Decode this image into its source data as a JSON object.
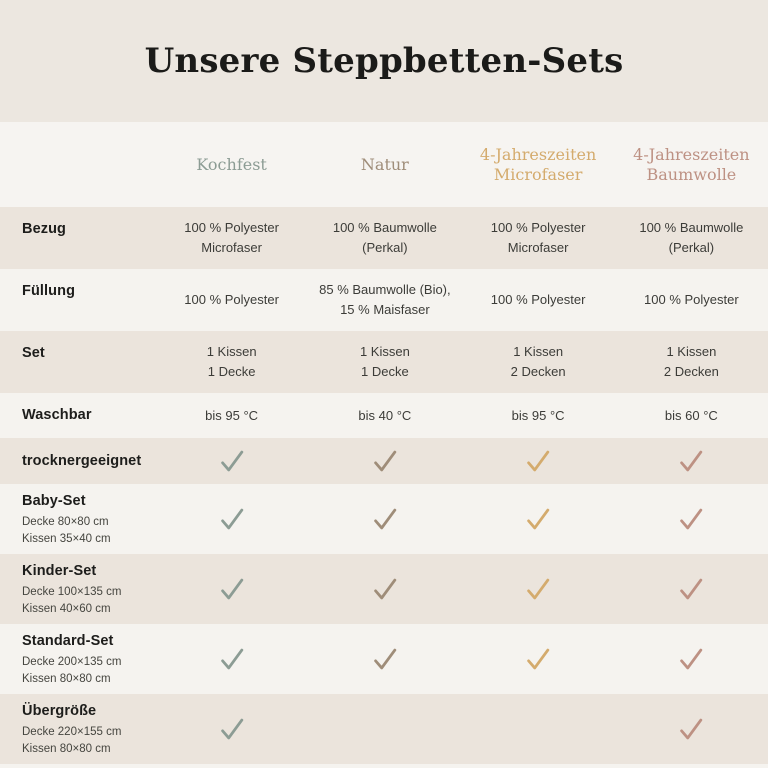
{
  "title": "Unsere Steppbetten-Sets",
  "colors": {
    "title_band_bg": "#ece7e0",
    "header_band_bg": "#f6f4f1",
    "row_dark_bg": "#ebe4dc",
    "row_light_bg": "#f5f3ef",
    "title_text": "#1b1b19"
  },
  "table": {
    "columns": [
      {
        "label": "Kochfest",
        "color": "#8c9c94"
      },
      {
        "label": "Natur",
        "color": "#9f8d79"
      },
      {
        "label": "4-Jahreszeiten Microfaser",
        "color": "#d4ab6d"
      },
      {
        "label": "4-Jahreszeiten Baumwolle",
        "color": "#bd9183"
      }
    ],
    "check_icon_name": "checkmark-icon",
    "rows": [
      {
        "label": "Bezug",
        "sublabels": [],
        "cells": [
          {
            "lines": [
              "100 % Polyester",
              "Microfaser"
            ]
          },
          {
            "lines": [
              "100 % Baumwolle",
              "(Perkal)"
            ]
          },
          {
            "lines": [
              "100 % Polyester",
              "Microfaser"
            ]
          },
          {
            "lines": [
              "100 % Baumwolle",
              "(Perkal)"
            ]
          }
        ]
      },
      {
        "label": "Füllung",
        "sublabels": [],
        "cells": [
          {
            "lines": [
              "100 % Polyester"
            ]
          },
          {
            "lines": [
              "85 % Baumwolle (Bio),",
              "15 % Maisfaser"
            ]
          },
          {
            "lines": [
              "100 % Polyester"
            ]
          },
          {
            "lines": [
              "100 % Polyester"
            ]
          }
        ]
      },
      {
        "label": "Set",
        "sublabels": [],
        "cells": [
          {
            "lines": [
              "1 Kissen",
              "1 Decke"
            ]
          },
          {
            "lines": [
              "1 Kissen",
              "1 Decke"
            ]
          },
          {
            "lines": [
              "1 Kissen",
              "2 Decken"
            ]
          },
          {
            "lines": [
              "1 Kissen",
              "2 Decken"
            ]
          }
        ]
      },
      {
        "label": "Waschbar",
        "sublabels": [],
        "cells": [
          {
            "lines": [
              "bis 95 °C"
            ]
          },
          {
            "lines": [
              "bis 40 °C"
            ]
          },
          {
            "lines": [
              "bis 95 °C"
            ]
          },
          {
            "lines": [
              "bis 60 °C"
            ]
          }
        ]
      },
      {
        "label": "trocknergeeignet",
        "sublabels": [],
        "checks": [
          true,
          true,
          true,
          true
        ]
      },
      {
        "label": "Baby-Set",
        "sublabels": [
          "Decke 80×80 cm",
          "Kissen 35×40 cm"
        ],
        "checks": [
          true,
          true,
          true,
          true
        ]
      },
      {
        "label": "Kinder-Set",
        "sublabels": [
          "Decke 100×135 cm",
          "Kissen 40×60 cm"
        ],
        "checks": [
          true,
          true,
          true,
          true
        ]
      },
      {
        "label": "Standard-Set",
        "sublabels": [
          "Decke 200×135 cm",
          "Kissen 80×80 cm"
        ],
        "checks": [
          true,
          true,
          true,
          true
        ]
      },
      {
        "label": "Übergröße",
        "sublabels": [
          "Decke 220×155 cm",
          "Kissen 80×80 cm"
        ],
        "checks": [
          true,
          false,
          false,
          true
        ]
      }
    ]
  }
}
